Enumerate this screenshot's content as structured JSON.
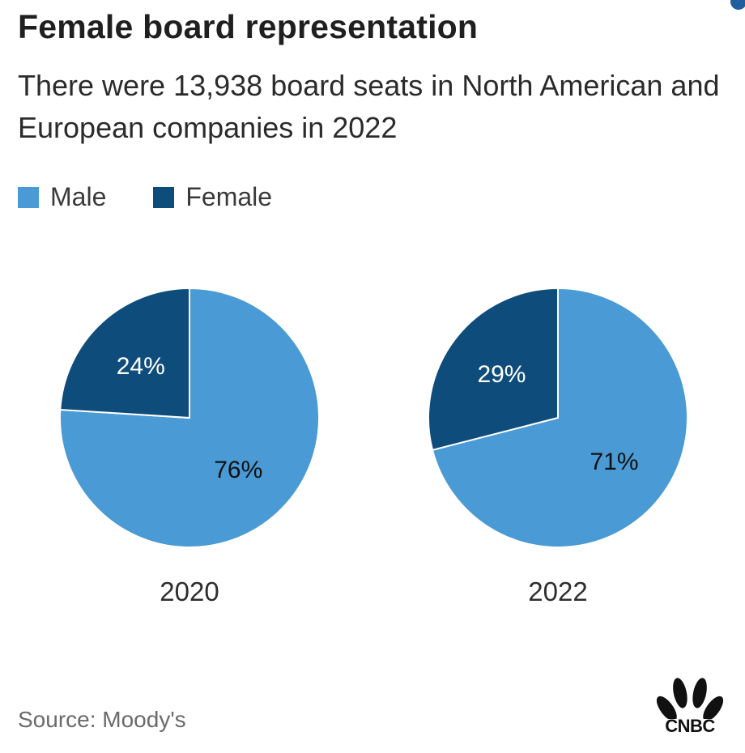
{
  "title": "Female board representation",
  "subtitle": "There were 13,938 board seats in North American and European companies in 2022",
  "legend": [
    {
      "label": "Male",
      "color": "#4a9ad5"
    },
    {
      "label": "Female",
      "color": "#0e4c7c"
    }
  ],
  "source": "Source: Moody's",
  "logo": {
    "text": "CNBC",
    "icon": "peacock-icon"
  },
  "chart_data": [
    {
      "type": "pie",
      "label": "2020",
      "slices": [
        {
          "name": "Male",
          "value": 76,
          "label": "76%",
          "color": "#4a9ad5"
        },
        {
          "name": "Female",
          "value": 24,
          "label": "24%",
          "color": "#0e4c7c"
        }
      ]
    },
    {
      "type": "pie",
      "label": "2022",
      "slices": [
        {
          "name": "Male",
          "value": 71,
          "label": "71%",
          "color": "#4a9ad5"
        },
        {
          "name": "Female",
          "value": 29,
          "label": "29%",
          "color": "#0e4c7c"
        }
      ]
    }
  ]
}
